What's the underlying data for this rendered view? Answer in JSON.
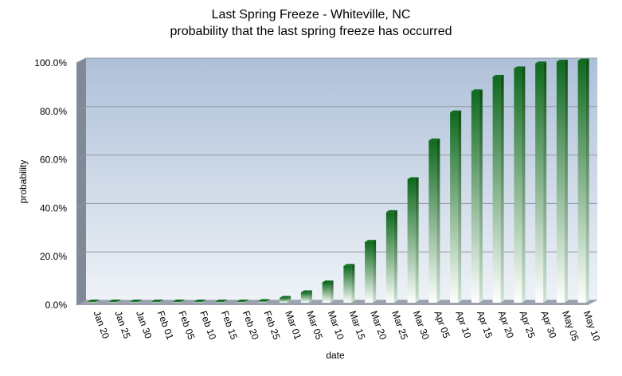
{
  "title": "Last Spring Freeze - Whiteville,  NC",
  "subtitle": "probability  that the last spring freeze has occurred",
  "chart_data": {
    "type": "bar",
    "title": "Last Spring Freeze - Whiteville,  NC",
    "subtitle": "probability  that the last spring freeze has occurred",
    "xlabel": "date",
    "ylabel": "probability",
    "ylim": [
      0,
      100
    ],
    "ytick_values": [
      0,
      20,
      40,
      60,
      80,
      100
    ],
    "ytick_labels": [
      "0.0%",
      "20.0%",
      "40.0%",
      "60.0%",
      "80.0%",
      "100.0%"
    ],
    "grid": true,
    "categories": [
      "Jan 20",
      "Jan 25",
      "Jan 30",
      "Feb 01",
      "Feb 05",
      "Feb 10",
      "Feb 15",
      "Feb 20",
      "Feb 25",
      "Mar 01",
      "Mar 05",
      "Mar 10",
      "Mar 15",
      "Mar 20",
      "Mar 25",
      "Mar 30",
      "Apr 05",
      "Apr 10",
      "Apr 15",
      "Apr 20",
      "Apr 25",
      "Apr 30",
      "May 05",
      "May 10"
    ],
    "values": [
      0.1,
      0.1,
      0.1,
      0.1,
      0.1,
      0.1,
      0.2,
      0.3,
      0.7,
      2.0,
      4.3,
      8.4,
      15.2,
      25.1,
      37.4,
      51.0,
      67.0,
      78.6,
      87.3,
      93.3,
      96.8,
      98.8,
      99.6,
      100.0
    ],
    "colors": {
      "bar_top": "#0e6a1c",
      "bar_bottom": "#ffffff",
      "bar_side": "#0a4f14",
      "plot_bg_top": "#aec0d8",
      "plot_bg_bottom": "#eef2f7",
      "wall": "#7f8a96",
      "gridline": "#8c97a6"
    }
  }
}
